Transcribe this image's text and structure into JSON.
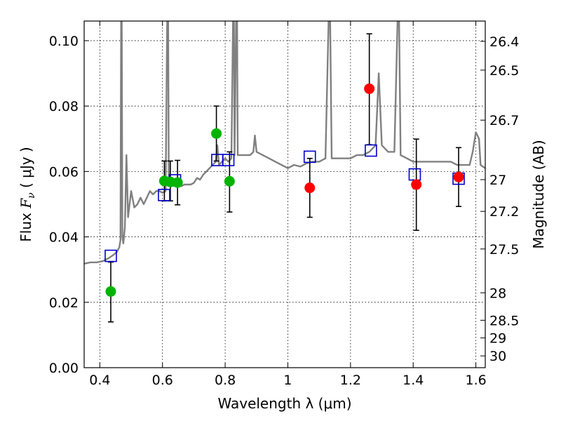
{
  "chart_data": {
    "type": "scatter",
    "title": "",
    "xlabel": "Wavelength  λ (μm)",
    "ylabel_prefix": "Flux  ",
    "ylabel_symbol": "F",
    "ylabel_sub": "ν",
    "ylabel_unit": "  ( μJy )",
    "ylabel2": "Magnitude (AB)",
    "xlim": [
      0.35,
      1.63
    ],
    "ylim": [
      0.0,
      0.106
    ],
    "grid": true,
    "x_ticks": [
      0.4,
      0.6,
      0.8,
      1.0,
      1.2,
      1.4,
      1.6
    ],
    "x_tick_labels": [
      "0.4",
      "0.6",
      "0.8",
      "1",
      "1.2",
      "1.4",
      "1.6"
    ],
    "y_ticks": [
      0.0,
      0.02,
      0.04,
      0.06,
      0.08,
      0.1
    ],
    "y_tick_labels": [
      "0.00",
      "0.02",
      "0.04",
      "0.06",
      "0.08",
      "0.10"
    ],
    "magnitude_ticks": [
      {
        "label": "26.4",
        "flux": 0.0998
      },
      {
        "label": "26.5",
        "flux": 0.091
      },
      {
        "label": "26.7",
        "flux": 0.0757
      },
      {
        "label": "27",
        "flux": 0.0575
      },
      {
        "label": "27.2",
        "flux": 0.0478
      },
      {
        "label": "27.5",
        "flux": 0.0363
      },
      {
        "label": "28",
        "flux": 0.0229
      },
      {
        "label": "28.5",
        "flux": 0.0145
      },
      {
        "label": "29",
        "flux": 0.0091
      },
      {
        "label": "30",
        "flux": 0.0036
      }
    ],
    "colors": {
      "spectrum": "#808080",
      "green": "#00b400",
      "red": "#ff0000",
      "model": "#0000cc",
      "errorbar": "#000000"
    },
    "series": [
      {
        "kind": "spectrum",
        "points": [
          [
            0.35,
            0.0318
          ],
          [
            0.37,
            0.0322
          ],
          [
            0.39,
            0.0322
          ],
          [
            0.41,
            0.0326
          ],
          [
            0.43,
            0.0336
          ],
          [
            0.445,
            0.0346
          ],
          [
            0.455,
            0.0355
          ],
          [
            0.462,
            0.0368
          ],
          [
            0.466,
            0.039
          ],
          [
            0.468,
            0.106
          ],
          [
            0.47,
            0.106
          ],
          [
            0.472,
            0.04
          ],
          [
            0.475,
            0.038
          ],
          [
            0.48,
            0.043
          ],
          [
            0.485,
            0.065
          ],
          [
            0.49,
            0.046
          ],
          [
            0.5,
            0.054
          ],
          [
            0.51,
            0.049
          ],
          [
            0.52,
            0.05
          ],
          [
            0.53,
            0.052
          ],
          [
            0.54,
            0.05
          ],
          [
            0.55,
            0.052
          ],
          [
            0.56,
            0.054
          ],
          [
            0.57,
            0.053
          ],
          [
            0.58,
            0.054
          ],
          [
            0.59,
            0.054
          ],
          [
            0.6,
            0.0535
          ],
          [
            0.61,
            0.054
          ],
          [
            0.615,
            0.106
          ],
          [
            0.618,
            0.106
          ],
          [
            0.62,
            0.056
          ],
          [
            0.63,
            0.057
          ],
          [
            0.64,
            0.056
          ],
          [
            0.65,
            0.056
          ],
          [
            0.66,
            0.0555
          ],
          [
            0.67,
            0.056
          ],
          [
            0.68,
            0.056
          ],
          [
            0.69,
            0.056
          ],
          [
            0.7,
            0.0565
          ],
          [
            0.71,
            0.058
          ],
          [
            0.72,
            0.0575
          ],
          [
            0.73,
            0.059
          ],
          [
            0.74,
            0.06
          ],
          [
            0.75,
            0.061
          ],
          [
            0.76,
            0.062
          ],
          [
            0.77,
            0.063
          ],
          [
            0.775,
            0.068
          ],
          [
            0.78,
            0.062
          ],
          [
            0.79,
            0.063
          ],
          [
            0.8,
            0.064
          ],
          [
            0.81,
            0.063
          ],
          [
            0.82,
            0.064
          ],
          [
            0.825,
            0.106
          ],
          [
            0.828,
            0.106
          ],
          [
            0.83,
            0.065
          ],
          [
            0.835,
            0.106
          ],
          [
            0.838,
            0.106
          ],
          [
            0.84,
            0.065
          ],
          [
            0.86,
            0.065
          ],
          [
            0.88,
            0.065
          ],
          [
            0.89,
            0.066
          ],
          [
            0.895,
            0.071
          ],
          [
            0.9,
            0.066
          ],
          [
            0.92,
            0.065
          ],
          [
            0.94,
            0.064
          ],
          [
            0.96,
            0.063
          ],
          [
            0.98,
            0.062
          ],
          [
            1.0,
            0.061
          ],
          [
            1.02,
            0.062
          ],
          [
            1.04,
            0.0615
          ],
          [
            1.06,
            0.0625
          ],
          [
            1.08,
            0.063
          ],
          [
            1.1,
            0.063
          ],
          [
            1.12,
            0.064
          ],
          [
            1.13,
            0.106
          ],
          [
            1.135,
            0.106
          ],
          [
            1.14,
            0.064
          ],
          [
            1.16,
            0.064
          ],
          [
            1.18,
            0.064
          ],
          [
            1.2,
            0.064
          ],
          [
            1.22,
            0.065
          ],
          [
            1.24,
            0.065
          ],
          [
            1.26,
            0.066
          ],
          [
            1.27,
            0.067
          ],
          [
            1.28,
            0.068
          ],
          [
            1.29,
            0.09
          ],
          [
            1.3,
            0.068
          ],
          [
            1.32,
            0.066
          ],
          [
            1.34,
            0.066
          ],
          [
            1.35,
            0.106
          ],
          [
            1.355,
            0.106
          ],
          [
            1.36,
            0.065
          ],
          [
            1.38,
            0.064
          ],
          [
            1.4,
            0.063
          ],
          [
            1.42,
            0.063
          ],
          [
            1.44,
            0.063
          ],
          [
            1.46,
            0.063
          ],
          [
            1.48,
            0.063
          ],
          [
            1.5,
            0.063
          ],
          [
            1.52,
            0.063
          ],
          [
            1.54,
            0.062
          ],
          [
            1.56,
            0.062
          ],
          [
            1.58,
            0.062
          ],
          [
            1.59,
            0.066
          ],
          [
            1.6,
            0.072
          ],
          [
            1.61,
            0.07
          ],
          [
            1.615,
            0.062
          ],
          [
            1.63,
            0.061
          ]
        ]
      },
      {
        "kind": "model",
        "points": [
          [
            0.435,
            0.0342
          ],
          [
            0.605,
            0.0528
          ],
          [
            0.64,
            0.0573
          ],
          [
            0.775,
            0.0635
          ],
          [
            0.81,
            0.0635
          ],
          [
            1.07,
            0.0645
          ],
          [
            1.265,
            0.0664
          ],
          [
            1.405,
            0.0591
          ],
          [
            1.545,
            0.0578
          ]
        ]
      },
      {
        "kind": "green",
        "points": [
          {
            "x": 0.435,
            "y": 0.0233,
            "err": [
              0.014,
              0.0323
            ]
          },
          {
            "x": 0.606,
            "y": 0.0571,
            "err": [
              0.051,
              0.0632
            ]
          },
          {
            "x": 0.625,
            "y": 0.0568,
            "err": [
              0.051,
              0.0632
            ]
          },
          {
            "x": 0.648,
            "y": 0.0566,
            "err": [
              0.0498,
              0.0634
            ]
          },
          {
            "x": 0.772,
            "y": 0.0716,
            "err": [
              0.0632,
              0.08
            ]
          },
          {
            "x": 0.814,
            "y": 0.057,
            "err": [
              0.0476,
              0.066
            ]
          }
        ]
      },
      {
        "kind": "red",
        "points": [
          {
            "x": 1.07,
            "y": 0.055,
            "err": [
              0.046,
              0.064
            ]
          },
          {
            "x": 1.26,
            "y": 0.0853,
            "err": [
              0.0682,
              0.1021
            ]
          },
          {
            "x": 1.41,
            "y": 0.056,
            "err": [
              0.042,
              0.0699
            ]
          },
          {
            "x": 1.545,
            "y": 0.0583,
            "err": [
              0.0493,
              0.0673
            ]
          }
        ]
      }
    ]
  }
}
